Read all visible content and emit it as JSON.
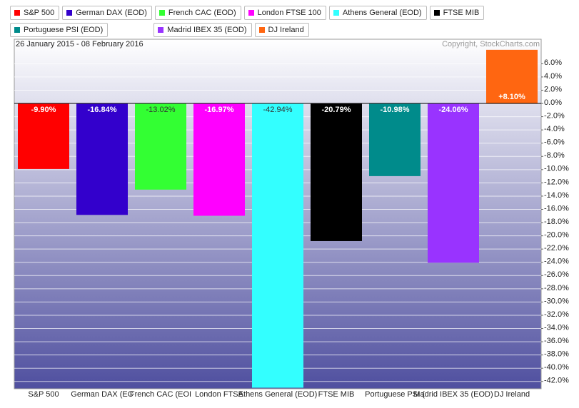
{
  "chart_data": {
    "type": "bar",
    "subtitle": "26 January 2015 - 08 February 2016",
    "copyright": "Copyright, StockCharts.com",
    "legend": [
      "S&P 500",
      "German DAX (EOD)",
      "French CAC (EOD)",
      "London FTSE 100",
      "Athens General (EOD)",
      "FTSE MIB",
      "Portuguese PSI (EOD)",
      "Madrid IBEX 35 (EOD)",
      "DJ Ireland"
    ],
    "categories": [
      "S&P 500",
      "German DAX (EC",
      "French CAC (EOI",
      "London FTSE",
      "Athens General (EOD)",
      "FTSE MIB",
      "Portuguese PSI (",
      "Madrid IBEX 35 (EOD)",
      "DJ Ireland"
    ],
    "values": [
      -9.9,
      -16.84,
      -13.02,
      -16.97,
      -42.94,
      -20.79,
      -10.98,
      -24.06,
      8.1
    ],
    "value_labels": [
      "-9.90%",
      "-16.84%",
      "-13.02%",
      "-16.97%",
      "-42.94%",
      "-20.79%",
      "-10.98%",
      "-24.06%",
      "+8.10%"
    ],
    "colors": [
      "#ff0000",
      "#3300cc",
      "#33ff33",
      "#ff00ff",
      "#33ffff",
      "#000000",
      "#008b8b",
      "#9933ff",
      "#ff6611"
    ],
    "ylim": [
      -43.1,
      9.7
    ],
    "yticks": [
      {
        "value": 6,
        "label": "6.0%"
      },
      {
        "value": 4,
        "label": "4.0%"
      },
      {
        "value": 2,
        "label": "2.0%"
      },
      {
        "value": 0,
        "label": "0.0%"
      },
      {
        "value": -2,
        "label": "-2.0%"
      },
      {
        "value": -4,
        "label": "-4.0%"
      },
      {
        "value": -6,
        "label": "-6.0%"
      },
      {
        "value": -8,
        "label": "-8.0%"
      },
      {
        "value": -10,
        "label": "-10.0%"
      },
      {
        "value": -12,
        "label": "-12.0%"
      },
      {
        "value": -14,
        "label": "-14.0%"
      },
      {
        "value": -16,
        "label": "-16.0%"
      },
      {
        "value": -18,
        "label": "-18.0%"
      },
      {
        "value": -20,
        "label": "-20.0%"
      },
      {
        "value": -22,
        "label": "-22.0%"
      },
      {
        "value": -24,
        "label": "-24.0%"
      },
      {
        "value": -26,
        "label": "-26.0%"
      },
      {
        "value": -28,
        "label": "-28.0%"
      },
      {
        "value": -30,
        "label": "-30.0%"
      },
      {
        "value": -32,
        "label": "-32.0%"
      },
      {
        "value": -34,
        "label": "-34.0%"
      },
      {
        "value": -36,
        "label": "-36.0%"
      },
      {
        "value": -38,
        "label": "-38.0%"
      },
      {
        "value": -40,
        "label": "-40.0%"
      },
      {
        "value": -42,
        "label": "-42.0%"
      }
    ],
    "grid": true
  }
}
